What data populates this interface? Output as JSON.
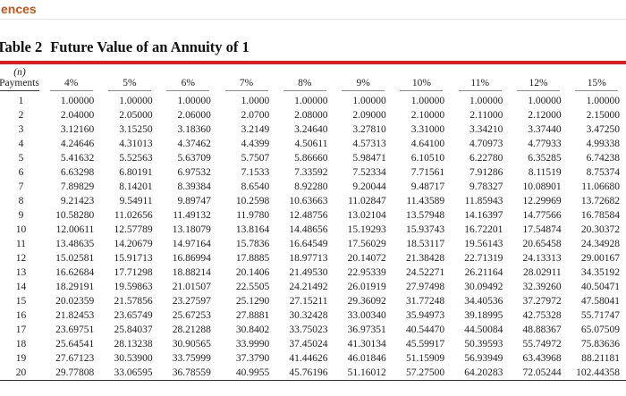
{
  "topbar": {
    "fragment": "ences"
  },
  "table": {
    "title_prefix": "Table 2",
    "title_text": "Future Value of an Annuity of 1",
    "row_header_line1": "(n)",
    "row_header_line2": "Payments",
    "columns": [
      "4%",
      "5%",
      "6%",
      "7%",
      "8%",
      "9%",
      "10%",
      "11%",
      "12%",
      "15%"
    ],
    "rows": [
      {
        "n": "1",
        "values": [
          "1.00000",
          "1.00000",
          "1.00000",
          "1.0000",
          "1.00000",
          "1.00000",
          "1.00000",
          "1.00000",
          "1.00000",
          "1.00000"
        ]
      },
      {
        "n": "2",
        "values": [
          "2.04000",
          "2.05000",
          "2.06000",
          "2.0700",
          "2.08000",
          "2.09000",
          "2.10000",
          "2.11000",
          "2.12000",
          "2.15000"
        ]
      },
      {
        "n": "3",
        "values": [
          "3.12160",
          "3.15250",
          "3.18360",
          "3.2149",
          "3.24640",
          "3.27810",
          "3.31000",
          "3.34210",
          "3.37440",
          "3.47250"
        ]
      },
      {
        "n": "4",
        "values": [
          "4.24646",
          "4.31013",
          "4.37462",
          "4.4399",
          "4.50611",
          "4.57313",
          "4.64100",
          "4.70973",
          "4.77933",
          "4.99338"
        ]
      },
      {
        "n": "5",
        "values": [
          "5.41632",
          "5.52563",
          "5.63709",
          "5.7507",
          "5.86660",
          "5.98471",
          "6.10510",
          "6.22780",
          "6.35285",
          "6.74238"
        ]
      },
      {
        "n": "6",
        "values": [
          "6.63298",
          "6.80191",
          "6.97532",
          "7.1533",
          "7.33592",
          "7.52334",
          "7.71561",
          "7.91286",
          "8.11519",
          "8.75374"
        ]
      },
      {
        "n": "7",
        "values": [
          "7.89829",
          "8.14201",
          "8.39384",
          "8.6540",
          "8.92280",
          "9.20044",
          "9.48717",
          "9.78327",
          "10.08901",
          "11.06680"
        ]
      },
      {
        "n": "8",
        "values": [
          "9.21423",
          "9.54911",
          "9.89747",
          "10.2598",
          "10.63663",
          "11.02847",
          "11.43589",
          "11.85943",
          "12.29969",
          "13.72682"
        ]
      },
      {
        "n": "9",
        "values": [
          "10.58280",
          "11.02656",
          "11.49132",
          "11.9780",
          "12.48756",
          "13.02104",
          "13.57948",
          "14.16397",
          "14.77566",
          "16.78584"
        ]
      },
      {
        "n": "10",
        "values": [
          "12.00611",
          "12.57789",
          "13.18079",
          "13.8164",
          "14.48656",
          "15.19293",
          "15.93743",
          "16.72201",
          "17.54874",
          "20.30372"
        ]
      },
      {
        "n": "11",
        "values": [
          "13.48635",
          "14.20679",
          "14.97164",
          "15.7836",
          "16.64549",
          "17.56029",
          "18.53117",
          "19.56143",
          "20.65458",
          "24.34928"
        ]
      },
      {
        "n": "12",
        "values": [
          "15.02581",
          "15.91713",
          "16.86994",
          "17.8885",
          "18.97713",
          "20.14072",
          "21.38428",
          "22.71319",
          "24.13313",
          "29.00167"
        ]
      },
      {
        "n": "13",
        "values": [
          "16.62684",
          "17.71298",
          "18.88214",
          "20.1406",
          "21.49530",
          "22.95339",
          "24.52271",
          "26.21164",
          "28.02911",
          "34.35192"
        ]
      },
      {
        "n": "14",
        "values": [
          "18.29191",
          "19.59863",
          "21.01507",
          "22.5505",
          "24.21492",
          "26.01919",
          "27.97498",
          "30.09492",
          "32.39260",
          "40.50471"
        ]
      },
      {
        "n": "15",
        "values": [
          "20.02359",
          "21.57856",
          "23.27597",
          "25.1290",
          "27.15211",
          "29.36092",
          "31.77248",
          "34.40536",
          "37.27972",
          "47.58041"
        ]
      },
      {
        "n": "16",
        "values": [
          "21.82453",
          "23.65749",
          "25.67253",
          "27.8881",
          "30.32428",
          "33.00340",
          "35.94973",
          "39.18995",
          "42.75328",
          "55.71747"
        ]
      },
      {
        "n": "17",
        "values": [
          "23.69751",
          "25.84037",
          "28.21288",
          "30.8402",
          "33.75023",
          "36.97351",
          "40.54470",
          "44.50084",
          "48.88367",
          "65.07509"
        ]
      },
      {
        "n": "18",
        "values": [
          "25.64541",
          "28.13238",
          "30.90565",
          "33.9990",
          "37.45024",
          "41.30134",
          "45.59917",
          "50.39593",
          "55.74972",
          "75.83636"
        ]
      },
      {
        "n": "19",
        "values": [
          "27.67123",
          "30.53900",
          "33.75999",
          "37.3790",
          "41.44626",
          "46.01846",
          "51.15909",
          "56.93949",
          "63.43968",
          "88.21181"
        ]
      },
      {
        "n": "20",
        "values": [
          "29.77808",
          "33.06595",
          "36.78559",
          "40.9955",
          "45.76196",
          "51.16012",
          "57.27500",
          "64.20283",
          "72.05244",
          "102.44358"
        ]
      }
    ]
  },
  "colors": {
    "accent_orange": "#c2571d",
    "rule_red": "#e2181e",
    "header_underline_gray": "#8d8d8d",
    "bottom_rule_dark": "#2e2e2e"
  }
}
